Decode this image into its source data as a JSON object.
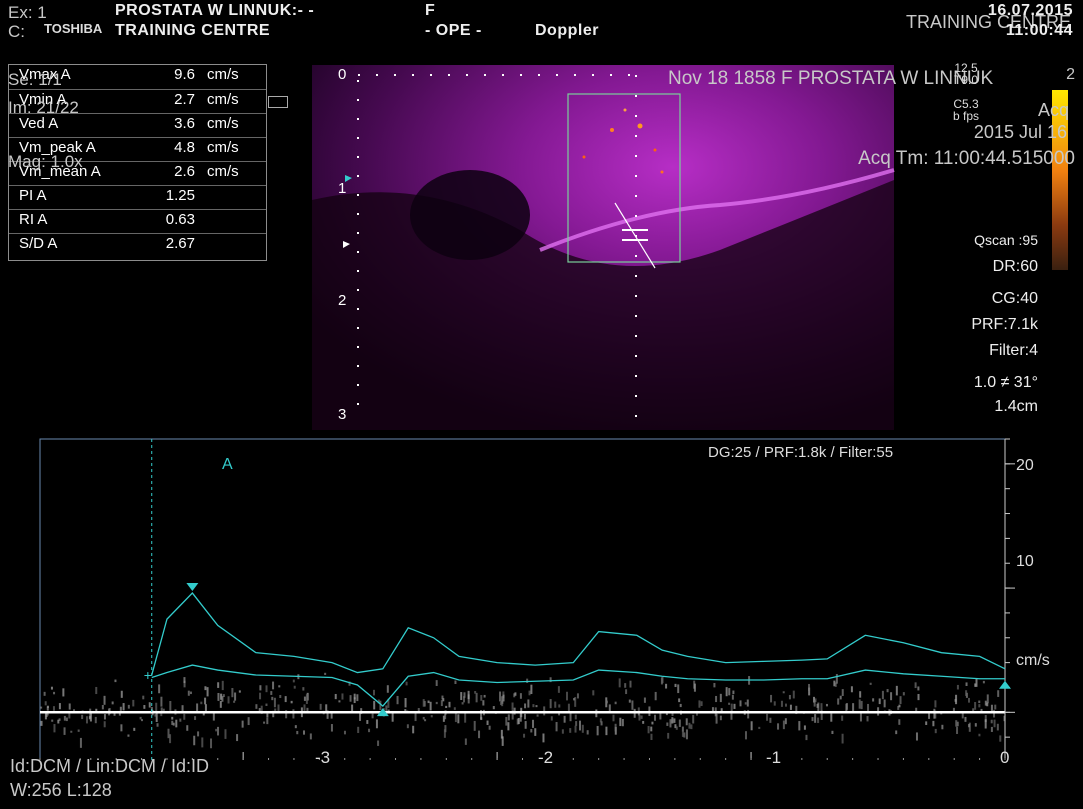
{
  "header": {
    "exam": "Ex: 1",
    "brand": "TOSHIBA",
    "patient": "PROSTATA W LINNUK:- -",
    "sex": "F",
    "institution": "TRAINING CENTRE",
    "mode": "- OPE -",
    "modality": "Doppler",
    "date": "16.07.2015",
    "time": "11:00:44",
    "site": "TRAINING CENTRE",
    "c_label": "C:"
  },
  "overlay": {
    "series": "Se: 1/1",
    "image": "Im: 21/22",
    "mag": "Mag: 1.0x",
    "study_info": "Nov 18 1858 F PROSTATA W LINNUK",
    "study_date": "2015 Jul 16",
    "acq_time": "Acq Tm: 11:00:44.515000",
    "acq": "Acq",
    "right_top": [
      "12.5",
      "T9.0",
      "C5.3",
      "b fps"
    ],
    "num_2": "2"
  },
  "measurements": [
    {
      "name": "Vmax A",
      "value": "9.6",
      "unit": "cm/s"
    },
    {
      "name": "Vmin A",
      "value": "2.7",
      "unit": "cm/s"
    },
    {
      "name": "Ved A",
      "value": "3.6",
      "unit": "cm/s"
    },
    {
      "name": "Vm_peak A",
      "value": "4.8",
      "unit": "cm/s"
    },
    {
      "name": "Vm_mean A",
      "value": "2.6",
      "unit": "cm/s"
    },
    {
      "name": "PI A",
      "value": "1.25",
      "unit": ""
    },
    {
      "name": "RI A",
      "value": "0.63",
      "unit": ""
    },
    {
      "name": "S/D A",
      "value": "2.67",
      "unit": ""
    }
  ],
  "params": {
    "qscan": "Qscan :95",
    "dr": "DR:60",
    "cg": "CG:40",
    "prf": "PRF:7.1k",
    "filter": "Filter:4",
    "angle": "1.0  ≠ 31°",
    "depth": "1.4cm"
  },
  "depth_scale": [
    "0",
    "1",
    "2",
    "3"
  ],
  "spectrum": {
    "settings": "DG:25 /   PRF:1.8k   / Filter:55",
    "marker": "A",
    "unit": "cm/s"
  },
  "footer": {
    "line1": "Id:DCM / Lin:DCM / Id:ID",
    "line2": "W:256  L:128"
  },
  "colors": {
    "bmode": "#b020c0",
    "teal": "#33cccc",
    "colorbar_top": "#ffe000",
    "colorbar_bottom": "#4a2a10"
  },
  "chart_data": {
    "type": "line",
    "title": "",
    "xlabel": "",
    "ylabel": "cm/s",
    "xlim": [
      -3.8,
      0
    ],
    "ylim": [
      -4,
      22
    ],
    "x_ticks": [
      "-3",
      "-2",
      "-1",
      "0"
    ],
    "y_ticks": [
      "20",
      "10"
    ],
    "series": [
      {
        "x": [
          -3.8,
          -3.5,
          -3.36,
          -3.3,
          -3.2,
          -3.1,
          -2.95,
          -2.8,
          -2.65,
          -2.55,
          -2.45,
          -2.35,
          -2.25,
          -2.15,
          -2.0,
          -1.85,
          -1.7,
          -1.6,
          -1.45,
          -1.35,
          -1.25,
          -1.1,
          -0.95,
          -0.8,
          -0.7,
          -0.55,
          -0.4,
          -0.25,
          -0.1,
          0.0
        ],
        "y": [
          null,
          null,
          3.0,
          7.5,
          9.6,
          7.0,
          4.8,
          4.5,
          4.0,
          3.2,
          3.5,
          6.8,
          6.0,
          4.5,
          4.0,
          3.8,
          4.0,
          6.5,
          6.2,
          5.0,
          4.5,
          4.0,
          4.1,
          4.2,
          4.3,
          6.2,
          5.6,
          4.8,
          4.5,
          3.5
        ]
      },
      {
        "x": [
          -3.8,
          -3.5,
          -3.36,
          -3.3,
          -3.2,
          -3.1,
          -2.95,
          -2.8,
          -2.65,
          -2.55,
          -2.45,
          -2.35,
          -2.25,
          -2.15,
          -2.0,
          -1.85,
          -1.7,
          -1.6,
          -1.45,
          -1.35,
          -1.25,
          -1.1,
          -0.95,
          -0.8,
          -0.7,
          -0.55,
          -0.4,
          -0.25,
          -0.1,
          0.0
        ],
        "y": [
          null,
          null,
          2.8,
          3.2,
          3.8,
          3.4,
          3.0,
          2.9,
          2.8,
          2.2,
          0.5,
          2.9,
          3.2,
          2.6,
          2.4,
          2.5,
          2.6,
          3.4,
          3.2,
          2.9,
          2.7,
          2.6,
          2.6,
          2.7,
          2.7,
          3.4,
          3.1,
          2.9,
          2.7,
          2.7
        ]
      }
    ]
  }
}
